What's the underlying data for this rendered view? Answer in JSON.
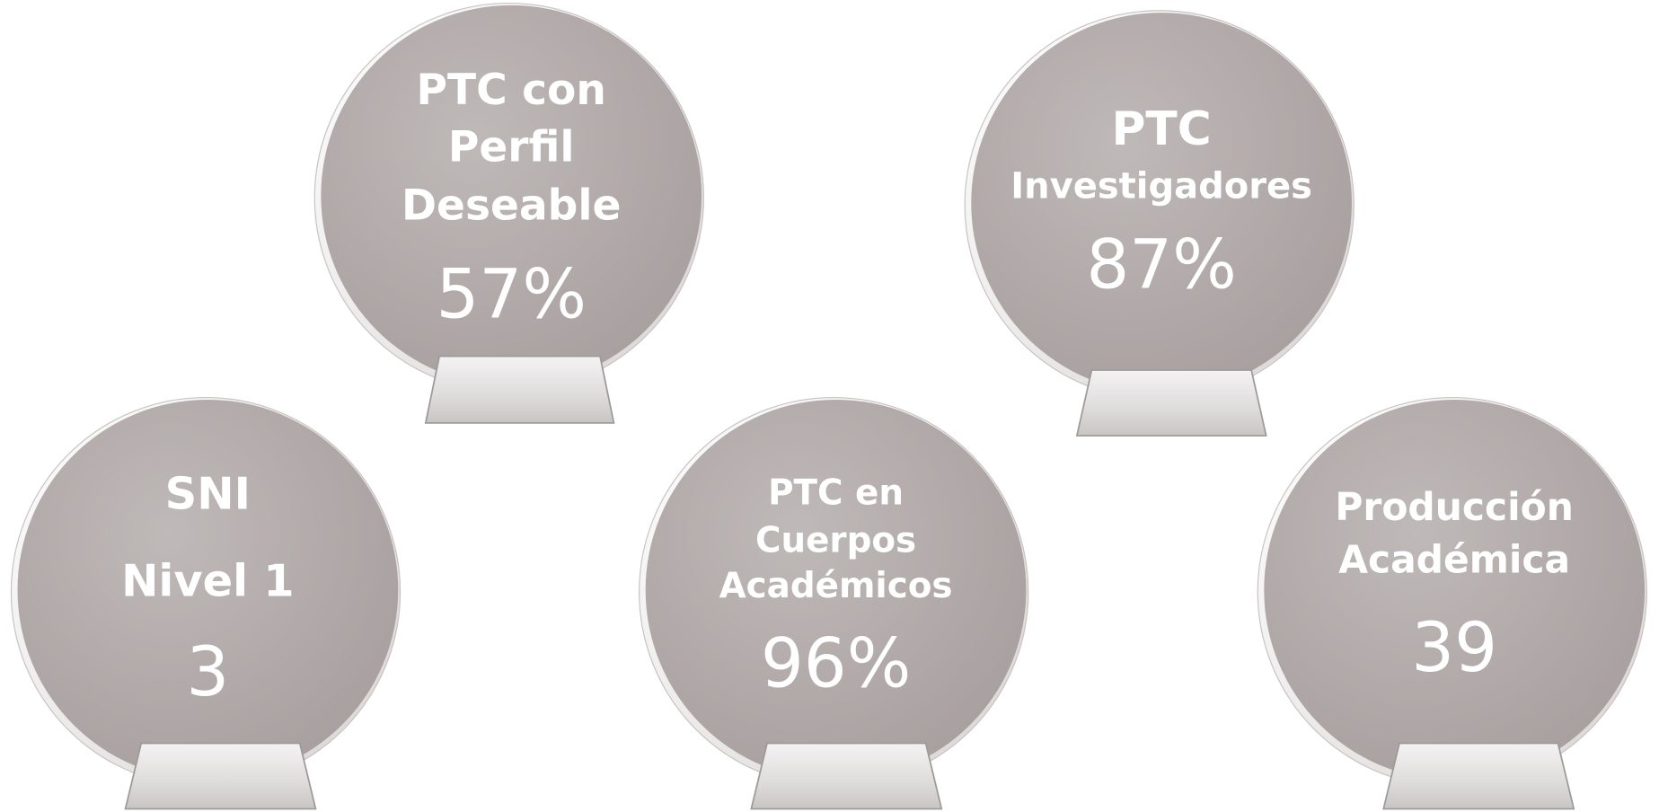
{
  "items": [
    {
      "lines": [
        "PTC con",
        "Perfil",
        "Deseable"
      ],
      "value": "57%"
    },
    {
      "lines": [
        "PTC",
        "Investigadores"
      ],
      "value": "87%"
    },
    {
      "lines": [
        "SNI",
        "Nivel 1"
      ],
      "value": "3"
    },
    {
      "lines": [
        "PTC en",
        "Cuerpos",
        "Académicos"
      ],
      "value": "96%"
    },
    {
      "lines": [
        "Producción",
        "Académica"
      ],
      "value": "39"
    }
  ]
}
